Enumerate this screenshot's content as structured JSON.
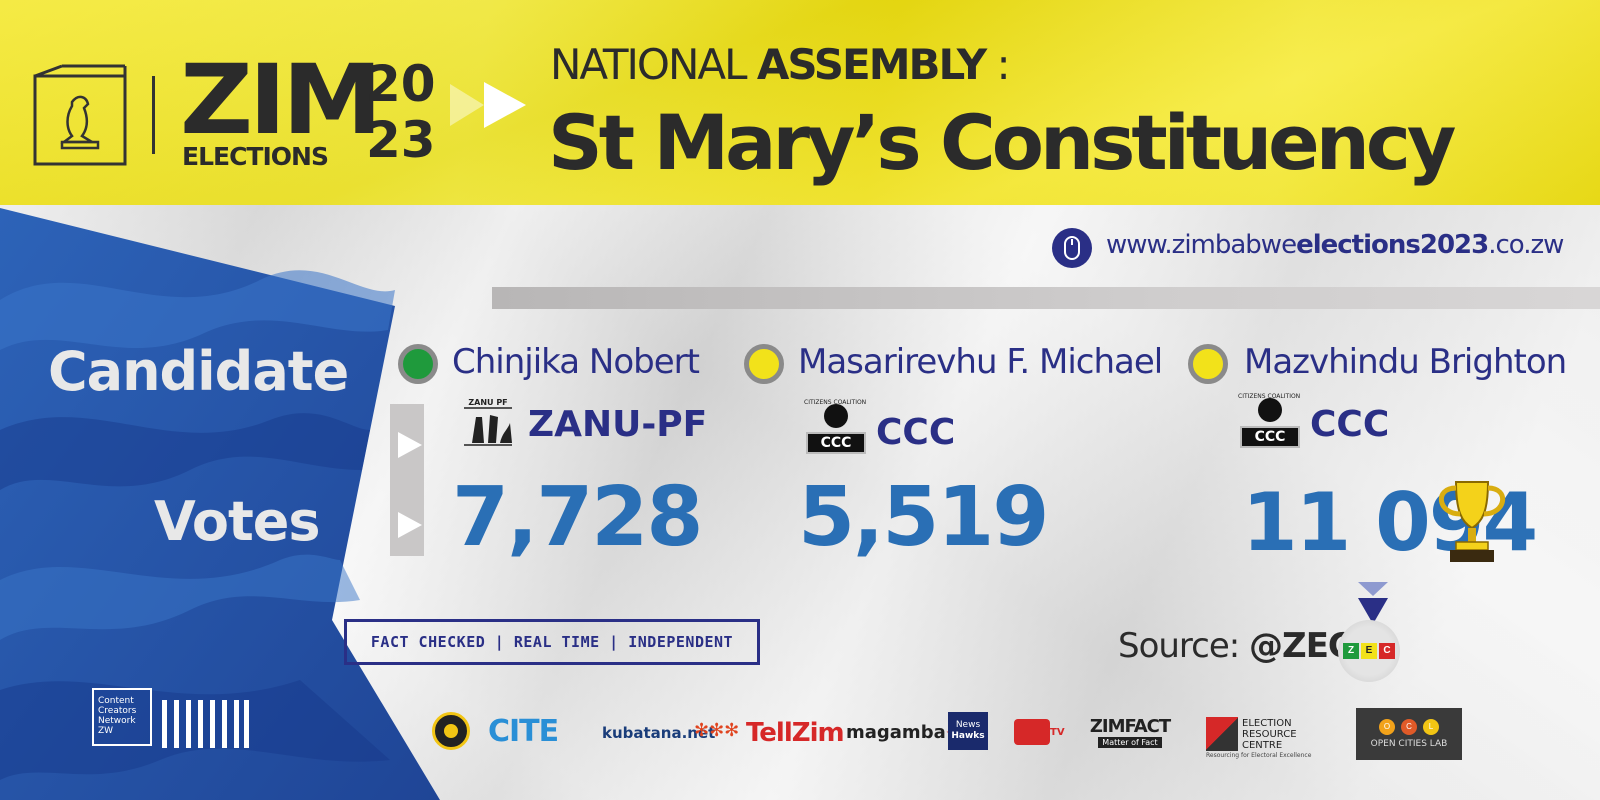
{
  "header": {
    "brand_zim": "ZIM",
    "brand_elections": "ELECTIONS",
    "brand_year_top": "20",
    "brand_year_bottom": "23",
    "title_prefix": "NATIONAL",
    "title_bold": "ASSEMBLY",
    "title_colon": ":",
    "constituency": "St Mary’s Constituency"
  },
  "website": {
    "prefix": "www.zimbabwe",
    "bold": "elections2023",
    "suffix": ".co.zw",
    "icon": "mouse-icon"
  },
  "labels": {
    "candidate": "Candidate",
    "votes": "Votes"
  },
  "candidates": [
    {
      "name": "Chinjika Nobert",
      "party": "ZANU-PF",
      "party_logo_text": "ZANU PF",
      "votes": "7,728",
      "dot_color": "#1f9a3c"
    },
    {
      "name": "Masarirevhu F. Michael",
      "party": "CCC",
      "party_logo_text": "CCC",
      "logo_ring_text": "CITIZENS COALITION FOR CHANGE",
      "votes": "5,519",
      "dot_color": "#f2e21a"
    },
    {
      "name": "Mazvhindu Brighton",
      "party": "CCC",
      "party_logo_text": "CCC",
      "logo_ring_text": "CITIZENS COALITION FOR CHANGE",
      "votes": "11 094",
      "dot_color": "#f2e21a",
      "winner_icon": "trophy-icon"
    }
  ],
  "tagline": "FACT CHECKED | REAL TIME | INDEPENDENT",
  "source": {
    "label": "Source:",
    "handle": "@ZEC",
    "logo_letters": [
      "Z",
      "E",
      "C"
    ]
  },
  "ccn": {
    "line1": "Content",
    "line2": "Creators",
    "line3": "Network",
    "line4": "ZW"
  },
  "partners": {
    "cite": "CITE",
    "kubatana": "kubatana.net",
    "tellzim": "TellZim",
    "magamba": "magamba",
    "newshawks_1": "News",
    "newshawks_2": "Hawks",
    "tv": "TV",
    "zimfact": "ZIMFACT",
    "zimfact_tag": "Matter of Fact",
    "erc_1": "ELECTION",
    "erc_2": "RESOURCE",
    "erc_3": "CENTRE",
    "erc_tag": "Resourcing for Electoral Excellence",
    "ocl_letters": [
      "O",
      "C",
      "L"
    ],
    "ocl_name": "OPEN CITIES LAB"
  },
  "colors": {
    "yellow": "#f3e61c",
    "navy": "#2a2f86",
    "blue": "#2c5fb0",
    "vote_blue": "#2a6fb5",
    "dark": "#2b2b2b"
  }
}
